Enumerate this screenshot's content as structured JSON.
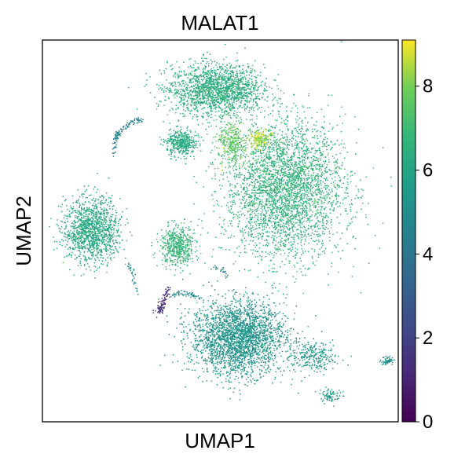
{
  "chart_data": {
    "type": "scatter",
    "title": "MALAT1",
    "xlabel": "UMAP1",
    "ylabel": "UMAP2",
    "xticks": "none",
    "yticks": "none",
    "grid": false,
    "colormap": "viridis",
    "colorbar": {
      "min": 0,
      "max": 9.1,
      "ticks": [
        0,
        2,
        4,
        6,
        8
      ],
      "placement": "right"
    },
    "clusters": [
      {
        "center": [
          49,
          87
        ],
        "spread": [
          11,
          5.5
        ],
        "count": 1800,
        "value": 6.4
      },
      {
        "center": [
          68,
          61
        ],
        "spread": [
          14,
          15
        ],
        "count": 3400,
        "value": 6.6
      },
      {
        "center": [
          39,
          73
        ],
        "spread": [
          3.4,
          2.9
        ],
        "count": 420,
        "value": 6.3
      },
      {
        "center": [
          14,
          50
        ],
        "spread": [
          6.5,
          7
        ],
        "count": 1300,
        "value": 6.1
      },
      {
        "center": [
          38,
          46
        ],
        "spread": [
          4,
          4.3
        ],
        "count": 520,
        "value": 6.7
      },
      {
        "center": [
          55,
          22
        ],
        "spread": [
          11,
          8
        ],
        "count": 2600,
        "value": 5.3
      },
      {
        "center": [
          76,
          17
        ],
        "spread": [
          5,
          3.5
        ],
        "count": 260,
        "value": 5.5
      },
      {
        "center": [
          97,
          16
        ],
        "spread": [
          1.6,
          0.9
        ],
        "count": 60,
        "value": 5.2
      },
      {
        "center": [
          81,
          7
        ],
        "spread": [
          2.4,
          1.6
        ],
        "count": 80,
        "value": 5.6
      },
      {
        "center": [
          53,
          73
        ],
        "spread": [
          3,
          5
        ],
        "count": 320,
        "value": 7.6
      },
      {
        "center": [
          61,
          74
        ],
        "spread": [
          2.5,
          2
        ],
        "count": 180,
        "value": 8.4
      },
      {
        "center": [
          33,
          29.5
        ],
        "spread": [
          1.1,
          1.3
        ],
        "count": 40,
        "value": 1.6
      }
    ],
    "filaments": [
      {
        "from": [
          21,
          75
        ],
        "to": [
          28,
          79
        ],
        "value": 4.4,
        "count": 70
      },
      {
        "from": [
          21,
          75
        ],
        "to": [
          20,
          70
        ],
        "value": 4.5,
        "count": 40
      },
      {
        "from": [
          36,
          33
        ],
        "to": [
          45,
          32
        ],
        "value": 4.8,
        "count": 60
      },
      {
        "from": [
          48,
          40
        ],
        "to": [
          52,
          38
        ],
        "value": 4.6,
        "count": 25
      },
      {
        "from": [
          24,
          41
        ],
        "to": [
          27,
          33
        ],
        "value": 4.8,
        "count": 30
      },
      {
        "from": [
          36,
          35
        ],
        "to": [
          33,
          28
        ],
        "value": 1.2,
        "count": 55
      }
    ]
  }
}
